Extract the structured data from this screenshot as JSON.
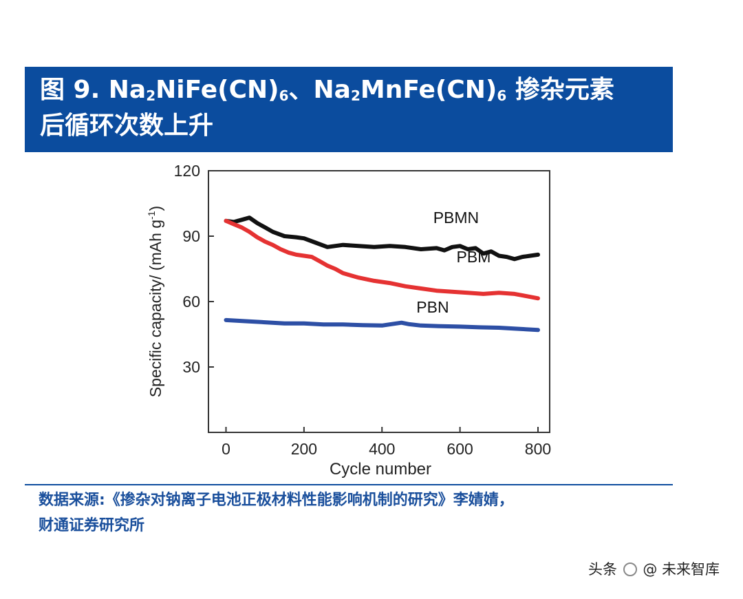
{
  "header": {
    "title_prefix": "图 9. Na",
    "title_sub1": "2",
    "title_mid1": "NiFe(CN)",
    "title_sub2": "6",
    "title_mid2": "、Na",
    "title_sub3": "2",
    "title_mid3": "MnFe(CN)",
    "title_sub4": "6",
    "title_suffix": " 掺杂元素",
    "title_line2": "后循环次数上升"
  },
  "chart_data": {
    "type": "line",
    "title": "",
    "xlabel": "Cycle number",
    "ylabel": "Specific capacity/ (mAh g-1)",
    "ylabel_main": "Specific capacity/ (mAh g",
    "ylabel_sup": "-1",
    "ylabel_end": ")",
    "xlim": [
      -45,
      830
    ],
    "ylim": [
      0,
      120
    ],
    "xticks": [
      0,
      200,
      400,
      600,
      800
    ],
    "yticks": [
      30,
      60,
      90,
      120
    ],
    "grid": false,
    "legend": "inline labels",
    "series": [
      {
        "name": "PBMN",
        "color": "#111111",
        "x": [
          0,
          20,
          40,
          60,
          80,
          100,
          120,
          150,
          180,
          200,
          230,
          260,
          300,
          340,
          380,
          420,
          460,
          500,
          540,
          560,
          580,
          600,
          620,
          640,
          660,
          680,
          700,
          720,
          740,
          760,
          780,
          800
        ],
        "y": [
          97,
          96.5,
          97.5,
          98.5,
          96,
          94,
          92,
          90,
          89.5,
          89,
          87,
          85,
          86,
          85.5,
          85,
          85.5,
          85,
          84,
          84.5,
          83.5,
          85,
          85.5,
          84,
          84.5,
          82,
          83,
          81,
          80.5,
          79.5,
          80.5,
          81,
          81.5
        ]
      },
      {
        "name": "PBM",
        "color": "#e53232",
        "x": [
          0,
          20,
          40,
          60,
          80,
          100,
          120,
          140,
          160,
          180,
          200,
          220,
          240,
          260,
          280,
          300,
          340,
          380,
          420,
          460,
          500,
          540,
          580,
          620,
          660,
          700,
          740,
          770,
          800
        ],
        "y": [
          97,
          95.5,
          94,
          92,
          89.5,
          87.5,
          86,
          84,
          82.5,
          81.5,
          81,
          80.5,
          78.5,
          76.5,
          75,
          73,
          71,
          69.5,
          68.5,
          67,
          66,
          65,
          64.5,
          64,
          63.5,
          64,
          63.5,
          62.5,
          61.5
        ]
      },
      {
        "name": "PBN",
        "color": "#2d4fa5",
        "x": [
          0,
          50,
          100,
          150,
          200,
          250,
          300,
          350,
          400,
          430,
          450,
          470,
          500,
          550,
          600,
          650,
          700,
          750,
          800
        ],
        "y": [
          51.5,
          51,
          50.5,
          50,
          50,
          49.5,
          49.5,
          49.2,
          49,
          49.8,
          50.3,
          49.6,
          49,
          48.7,
          48.5,
          48.2,
          48,
          47.5,
          47
        ]
      }
    ]
  },
  "footer": {
    "source_line1": "数据来源:《掺杂对钠离子电池正极材料性能影响机制的研究》李婧婧，",
    "source_line2": "财通证券研究所"
  },
  "watermark": {
    "prefix": "头条",
    "at": "@",
    "name": "未来智库"
  }
}
